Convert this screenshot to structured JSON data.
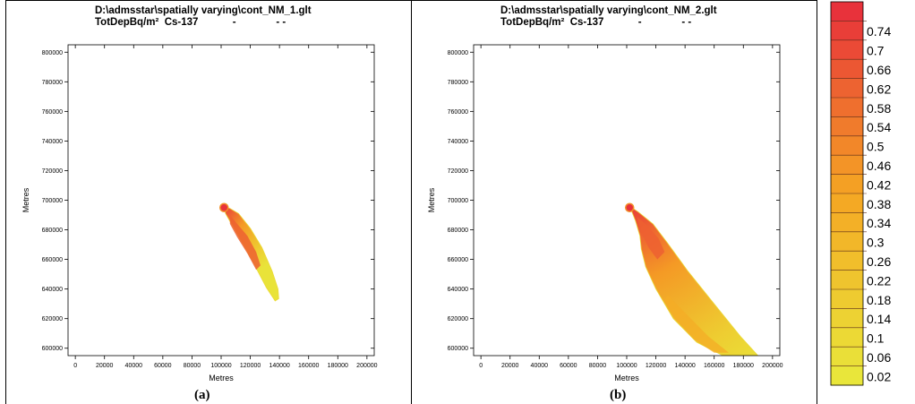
{
  "chart_data": [
    {
      "type": "contour",
      "title": "D:\\admsstar\\spatially varying\\cont_NM_1.glt",
      "subtitle": "TotDepBq/m²  Cs-137            -              - -",
      "xlabel": "Metres",
      "ylabel": "Metres",
      "xlim": [
        -5000,
        205000
      ],
      "ylim": [
        595000,
        805000
      ],
      "x_ticks": [
        "0",
        "20000",
        "40000",
        "60000",
        "80000",
        "100000",
        "120000",
        "140000",
        "160000",
        "180000",
        "200000"
      ],
      "y_ticks": [
        "600000",
        "620000",
        "640000",
        "660000",
        "680000",
        "700000",
        "720000",
        "740000",
        "760000",
        "780000",
        "800000"
      ],
      "caption": "(a)",
      "source": [
        102000,
        695000
      ],
      "plume_outline": [
        [
          102000,
          695500
        ],
        [
          106000,
          694500
        ],
        [
          112000,
          691000
        ],
        [
          120000,
          681000
        ],
        [
          128000,
          668000
        ],
        [
          135000,
          652000
        ],
        [
          139000,
          640000
        ],
        [
          139500,
          633500
        ],
        [
          137000,
          632000
        ],
        [
          131000,
          641000
        ],
        [
          123000,
          656000
        ],
        [
          114000,
          672000
        ],
        [
          107000,
          684000
        ],
        [
          103000,
          691000
        ]
      ],
      "peak_region": [
        [
          106000,
          690000
        ],
        [
          111000,
          684000
        ],
        [
          118000,
          676000
        ],
        [
          124000,
          665000
        ],
        [
          127000,
          656000
        ],
        [
          124000,
          653000
        ],
        [
          118000,
          664000
        ],
        [
          111000,
          675000
        ],
        [
          106000,
          684000
        ]
      ],
      "peak_level": 0.74
    },
    {
      "type": "contour",
      "title": "D:\\admsstar\\spatially varying\\cont_NM_2.glt",
      "subtitle": "TotDepBq/m²  Cs-137            -              - -",
      "xlabel": "Metres",
      "ylabel": "Metres",
      "xlim": [
        -5000,
        205000
      ],
      "ylim": [
        595000,
        805000
      ],
      "x_ticks": [
        "0",
        "20000",
        "40000",
        "60000",
        "80000",
        "100000",
        "120000",
        "140000",
        "160000",
        "180000",
        "200000"
      ],
      "y_ticks": [
        "600000",
        "620000",
        "640000",
        "660000",
        "680000",
        "700000",
        "720000",
        "740000",
        "760000",
        "780000",
        "800000"
      ],
      "caption": "(b)",
      "source": [
        102000,
        695000
      ],
      "plume_outline": [
        [
          102000,
          696000
        ],
        [
          108000,
          692000
        ],
        [
          118000,
          684000
        ],
        [
          128000,
          671000
        ],
        [
          142000,
          652000
        ],
        [
          160000,
          630000
        ],
        [
          178000,
          608000
        ],
        [
          190000,
          595000
        ],
        [
          166000,
          595000
        ],
        [
          148000,
          604000
        ],
        [
          132000,
          620000
        ],
        [
          120000,
          640000
        ],
        [
          113000,
          655000
        ],
        [
          110000,
          667000
        ],
        [
          109000,
          676000
        ],
        [
          106000,
          686000
        ]
      ],
      "peak_region": [
        [
          107000,
          689000
        ],
        [
          114000,
          683000
        ],
        [
          122000,
          674000
        ],
        [
          126000,
          665000
        ],
        [
          121000,
          660000
        ],
        [
          115000,
          668000
        ],
        [
          110000,
          678000
        ]
      ],
      "secondary_region": [
        [
          128000,
          636000
        ],
        [
          142000,
          622000
        ],
        [
          156000,
          608000
        ],
        [
          170000,
          597000
        ],
        [
          160000,
          597000
        ],
        [
          146000,
          606000
        ],
        [
          133000,
          620000
        ],
        [
          126000,
          632000
        ]
      ],
      "peak_level": 0.7
    }
  ],
  "legend": {
    "type": "colorbar",
    "labels": [
      "0.74",
      "0.7",
      "0.66",
      "0.62",
      "0.58",
      "0.54",
      "0.5",
      "0.46",
      "0.42",
      "0.38",
      "0.34",
      "0.3",
      "0.26",
      "0.22",
      "0.18",
      "0.14",
      "0.1",
      "0.06",
      "0.02"
    ],
    "color_low": "#e9e63a",
    "color_mid": "#f5a623",
    "color_high": "#e8323b"
  }
}
